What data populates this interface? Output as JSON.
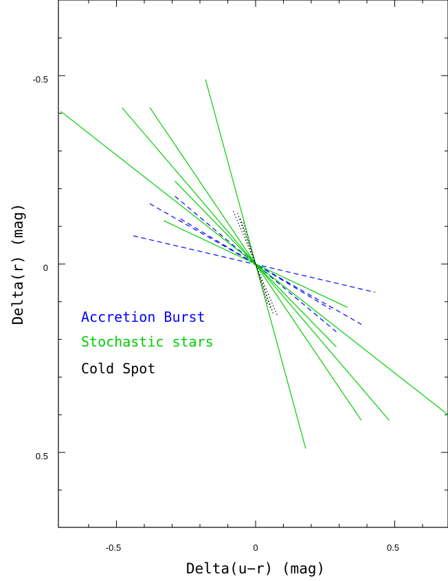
{
  "chart_data": {
    "type": "line",
    "xlabel": "Delta(u−r) (mag)",
    "ylabel": "Delta(r) (mag)",
    "xlim": [
      -0.7,
      0.7
    ],
    "ylim": [
      0.7,
      -0.7
    ],
    "y_inverted": true,
    "x_ticks": [
      -0.5,
      0,
      0.5
    ],
    "x_tick_labels": [
      "-0.5",
      "0",
      "0.5"
    ],
    "y_ticks": [
      -0.5,
      0,
      0.5
    ],
    "y_tick_labels": [
      "-0.5",
      "0",
      "0.5"
    ],
    "grid": false,
    "legend_position": "left",
    "series": [
      {
        "name": "Accretion Burst",
        "color": "#0000ff",
        "style": "dashed",
        "lines": [
          [
            [
              -0.44,
              -0.075
            ],
            [
              0.43,
              0.075
            ]
          ],
          [
            [
              -0.38,
              -0.16
            ],
            [
              0.38,
              0.16
            ]
          ],
          [
            [
              -0.29,
              -0.18
            ],
            [
              0.29,
              0.18
            ]
          ],
          [
            [
              -0.27,
              -0.12
            ],
            [
              0.27,
              0.12
            ]
          ]
        ]
      },
      {
        "name": "Stochastic stars",
        "color": "#00cc00",
        "style": "solid",
        "lines": [
          [
            [
              -0.7,
              -0.405
            ],
            [
              0.7,
              0.405
            ]
          ],
          [
            [
              -0.48,
              -0.415
            ],
            [
              0.48,
              0.415
            ]
          ],
          [
            [
              -0.38,
              -0.415
            ],
            [
              0.38,
              0.415
            ]
          ],
          [
            [
              -0.18,
              -0.49
            ],
            [
              0.18,
              0.49
            ]
          ],
          [
            [
              -0.29,
              -0.22
            ],
            [
              0.29,
              0.22
            ]
          ],
          [
            [
              -0.33,
              -0.115
            ],
            [
              0.33,
              0.115
            ]
          ]
        ]
      },
      {
        "name": "Cold Spot",
        "color": "#000000",
        "style": "dotted",
        "lines": [
          [
            [
              -0.065,
              -0.135
            ],
            [
              0.065,
              0.135
            ]
          ],
          [
            [
              -0.08,
              -0.14
            ],
            [
              0.08,
              0.14
            ]
          ],
          [
            [
              -0.055,
              -0.12
            ],
            [
              0.055,
              0.12
            ]
          ],
          [
            [
              -0.045,
              -0.11
            ],
            [
              0.045,
              0.11
            ]
          ]
        ]
      }
    ]
  }
}
